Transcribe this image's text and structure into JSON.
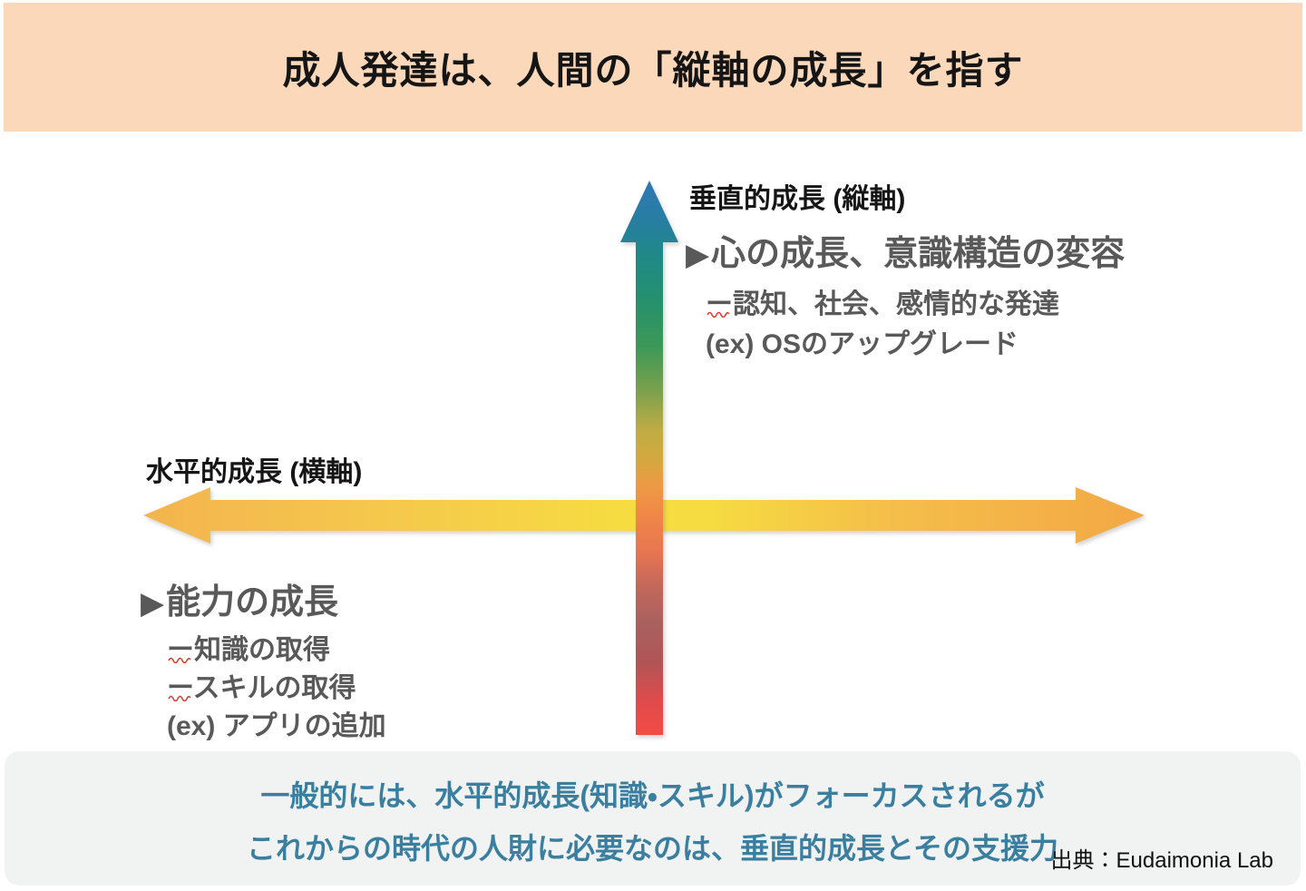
{
  "title": {
    "text": "成人発達は、人間の「縦軸の成長」を指す"
  },
  "colors": {
    "banner_bg": "#FBD8BA",
    "footer_bg": "#F1F2F2",
    "footer_text": "#3A7FA0",
    "heading_gray": "#595959",
    "title_black": "#151515",
    "squiggle_red": "#E03A2A"
  },
  "vertical_axis": {
    "axis_label": "垂直的成長 (縦軸)",
    "bullet": "▶",
    "heading": "心の成長、意識構造の変容",
    "detail_1": "ー認知、社会、感情的な発達",
    "detail_2": "(ex) OSのアップグレード",
    "gradient": [
      {
        "offset": "0%",
        "color": "#3078B5"
      },
      {
        "offset": "8%",
        "color": "#267F9E"
      },
      {
        "offset": "14%",
        "color": "#1F8A85"
      },
      {
        "offset": "22%",
        "color": "#26916C"
      },
      {
        "offset": "30%",
        "color": "#3C9857"
      },
      {
        "offset": "38%",
        "color": "#7CA14C"
      },
      {
        "offset": "45%",
        "color": "#BFAC44"
      },
      {
        "offset": "50%",
        "color": "#D3A93F"
      },
      {
        "offset": "55%",
        "color": "#EE9A44"
      },
      {
        "offset": "60%",
        "color": "#F08847"
      },
      {
        "offset": "67%",
        "color": "#E87550"
      },
      {
        "offset": "73%",
        "color": "#C4685B"
      },
      {
        "offset": "80%",
        "color": "#A9605F"
      },
      {
        "offset": "87%",
        "color": "#B25456"
      },
      {
        "offset": "94%",
        "color": "#E04B4B"
      },
      {
        "offset": "100%",
        "color": "#F24B45"
      }
    ]
  },
  "horizontal_axis": {
    "axis_label": "水平的成長 (横軸)",
    "bullet": "▶",
    "heading": "能力の成長",
    "detail_1": "ー知識の取得",
    "detail_2": "ースキルの取得",
    "detail_3": "(ex) アプリの追加",
    "gradient": [
      {
        "offset": "0%",
        "color": "#F3B44F"
      },
      {
        "offset": "25%",
        "color": "#F5C94C"
      },
      {
        "offset": "48%",
        "color": "#F6DC41"
      },
      {
        "offset": "56%",
        "color": "#F6DC41"
      },
      {
        "offset": "75%",
        "color": "#F4BE4A"
      },
      {
        "offset": "100%",
        "color": "#F3A845"
      }
    ]
  },
  "footer": {
    "line1": "一般的には、水平的成長(知識・スキル)がフォーカスされるが",
    "line2": "これからの時代の人財に必要なのは、垂直的成長とその支援力",
    "source": "出典：Eudaimonia Lab"
  }
}
